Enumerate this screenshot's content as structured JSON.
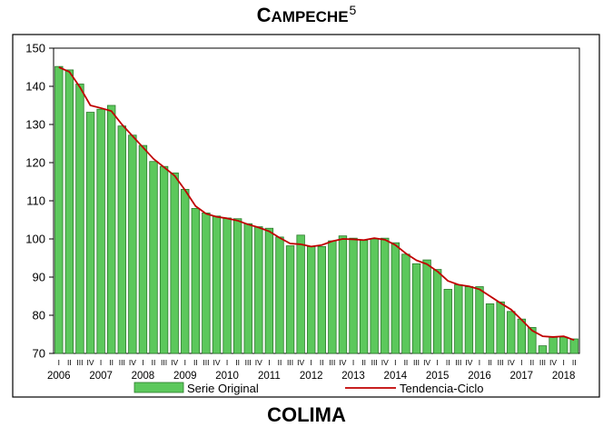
{
  "page": {
    "title_prefix": "C",
    "title_rest": "AMPECHE",
    "title_superscript": "5",
    "next_title": "COLIMA"
  },
  "chart_data": {
    "type": "bar",
    "title": "CAMPECHE",
    "ylim": [
      70,
      150
    ],
    "yticks": [
      70,
      80,
      90,
      100,
      110,
      120,
      130,
      140,
      150
    ],
    "years": [
      "2006",
      "2007",
      "2008",
      "2009",
      "2010",
      "2011",
      "2012",
      "2013",
      "2014",
      "2015",
      "2016",
      "2017",
      "2018"
    ],
    "quarters": [
      "I",
      "II",
      "III",
      "IV"
    ],
    "grid": false,
    "legend_position": "bottom",
    "colors": {
      "bar_fill": "#5cc85c",
      "bar_stroke": "#2b7a2b",
      "trend": "#c00000"
    },
    "series": [
      {
        "name": "Serie Original",
        "kind": "bar",
        "values": [
          145.2,
          144.3,
          140.6,
          133.2,
          134.0,
          135.0,
          129.6,
          127.2,
          124.5,
          120.3,
          119.0,
          117.3,
          113.0,
          108.0,
          106.8,
          106.0,
          105.5,
          105.3,
          104.0,
          103.2,
          102.8,
          100.5,
          98.2,
          101.0,
          98.0,
          98.0,
          99.5,
          100.8,
          100.2,
          99.6,
          100.0,
          100.2,
          99.0,
          96.0,
          93.5,
          94.5,
          92.0,
          86.8,
          88.0,
          87.5,
          87.5,
          83.0,
          83.5,
          81.0,
          79.0,
          76.8,
          72.0,
          74.3,
          74.3,
          73.8
        ]
      },
      {
        "name": "Tendencia-Ciclo",
        "kind": "line",
        "values": [
          145.0,
          143.8,
          139.8,
          135.0,
          134.3,
          133.5,
          130.0,
          127.0,
          124.0,
          121.0,
          118.8,
          116.6,
          112.8,
          108.6,
          106.6,
          105.8,
          105.4,
          104.8,
          103.8,
          103.0,
          102.0,
          100.3,
          98.8,
          98.6,
          98.0,
          98.4,
          99.4,
          100.0,
          99.9,
          99.7,
          100.2,
          99.8,
          98.4,
          96.2,
          94.4,
          93.4,
          91.5,
          89.0,
          88.0,
          87.6,
          86.8,
          85.0,
          83.2,
          81.5,
          78.8,
          76.0,
          74.5,
          74.3,
          74.5,
          73.5
        ]
      }
    ]
  }
}
